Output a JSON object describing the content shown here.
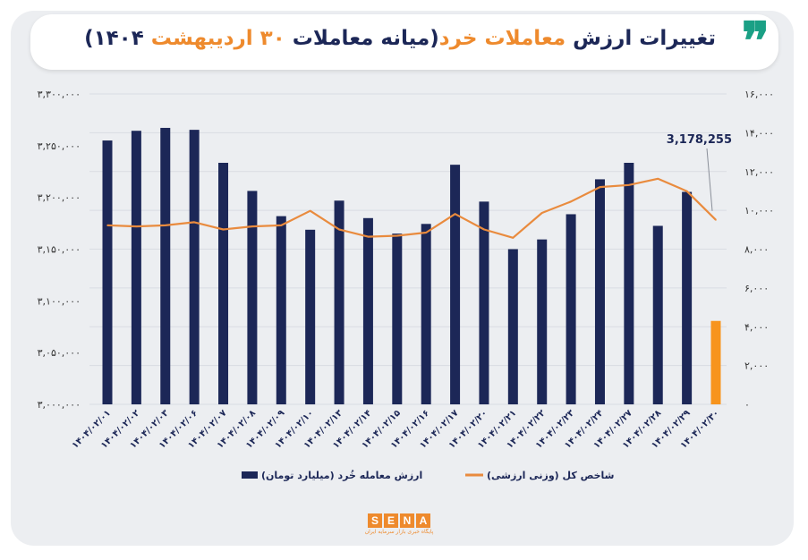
{
  "title": {
    "part1": "تغییرات ارزش ",
    "part2": "معاملات خرد",
    "part3": "(میانه معاملات ",
    "part4": "۳۰ اردیبهشت",
    "part5": " ۱۴۰۴)"
  },
  "quote_glyph": "❞",
  "chart_data": {
    "type": "bar",
    "categories": [
      "۱۴۰۴/۰۲/۰۱",
      "۱۴۰۴/۰۲/۰۲",
      "۱۴۰۴/۰۲/۰۳",
      "۱۴۰۴/۰۲/۰۶",
      "۱۴۰۴/۰۲/۰۷",
      "۱۴۰۴/۰۲/۰۸",
      "۱۴۰۴/۰۲/۰۹",
      "۱۴۰۴/۰۲/۱۰",
      "۱۴۰۴/۰۲/۱۳",
      "۱۴۰۴/۰۲/۱۴",
      "۱۴۰۴/۰۲/۱۵",
      "۱۴۰۴/۰۲/۱۶",
      "۱۴۰۴/۰۲/۱۷",
      "۱۴۰۴/۰۲/۲۰",
      "۱۴۰۴/۰۲/۲۱",
      "۱۴۰۴/۰۲/۲۲",
      "۱۴۰۴/۰۲/۲۳",
      "۱۴۰۴/۰۲/۲۴",
      "۱۴۰۴/۰۲/۲۷",
      "۱۴۰۴/۰۲/۲۸",
      "۱۴۰۴/۰۲/۲۹",
      "۱۴۰۴/۰۲/۳۰"
    ],
    "series": [
      {
        "name": "ارزش معامله خُرد (میلیارد تومان)",
        "axis": "right",
        "color": "#1c2757",
        "highlight_color": "#f7941d",
        "values": [
          13600,
          14100,
          14250,
          14150,
          12450,
          11000,
          9700,
          9000,
          10500,
          9600,
          8800,
          9300,
          12350,
          10450,
          8000,
          8500,
          9800,
          11600,
          12450,
          9200,
          10950,
          4300
        ]
      },
      {
        "name": "شاخص کل (وزنی ارزشی)",
        "axis": "left",
        "color": "#e98b3e",
        "values": [
          3173000,
          3172000,
          3173000,
          3176000,
          3169000,
          3172000,
          3173000,
          3187000,
          3169000,
          3162000,
          3163000,
          3166000,
          3184000,
          3169000,
          3161000,
          3185000,
          3196000,
          3210000,
          3212000,
          3218000,
          3206000,
          3178255
        ]
      }
    ],
    "y_left": {
      "min": 3000000,
      "max": 3300000,
      "ticks": [
        "۳,۰۰۰,۰۰۰",
        "۳,۰۵۰,۰۰۰",
        "۳,۱۰۰,۰۰۰",
        "۳,۱۵۰,۰۰۰",
        "۳,۲۰۰,۰۰۰",
        "۳,۲۵۰,۰۰۰",
        "۳,۳۰۰,۰۰۰"
      ]
    },
    "y_right": {
      "min": 0,
      "max": 16000,
      "ticks": [
        "۰",
        "۲,۰۰۰",
        "۴,۰۰۰",
        "۶,۰۰۰",
        "۸,۰۰۰",
        "۱۰,۰۰۰",
        "۱۲,۰۰۰",
        "۱۴,۰۰۰",
        "۱۶,۰۰۰"
      ]
    },
    "annotation": {
      "text": "3,178,255",
      "series": 1,
      "point": 21
    },
    "grid": true,
    "legend": "bottom"
  },
  "logo": {
    "letters": [
      "S",
      "E",
      "N",
      "A"
    ],
    "tagline": "پایگاه خبری بازار سرمایه ایران"
  }
}
